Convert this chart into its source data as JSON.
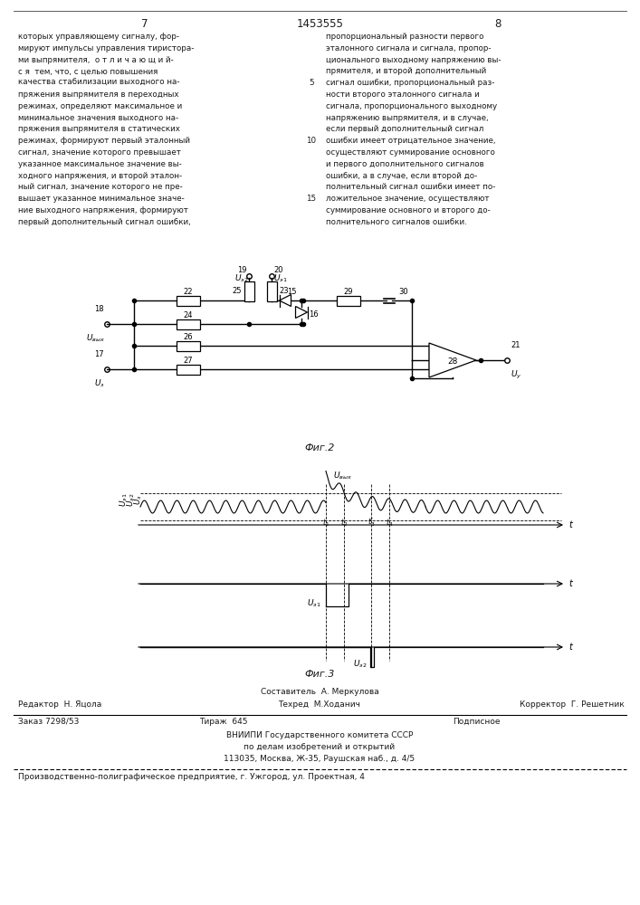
{
  "page_number_left": "7",
  "patent_number": "1453555",
  "page_number_right": "8",
  "left_column_text": [
    "которых управляющему сигналу, фор-",
    "мируют импульсы управления тиристора-",
    "ми выпрямителя,  о т л и ч а ю щ и й-",
    "с я  тем, что, с целью повышения",
    "качества стабилизации выходного на-",
    "пряжения выпрямителя в переходных",
    "режимах, определяют максимальное и",
    "минимальное значения выходного на-",
    "пряжения выпрямителя в статических",
    "режимах, формируют первый эталонный",
    "сигнал, значение которого превышает",
    "указанное максимальное значение вы-",
    "ходного напряжения, и второй эталон-",
    "ный сигнал, значение которого не пре-",
    "вышает указанное минимальное значе-",
    "ние выходного напряжения, формируют",
    "первый дополнительный сигнал ошибки,"
  ],
  "right_column_text": [
    "пропорциональный разности первого",
    "эталонного сигнала и сигнала, пропор-",
    "ционального выходному напряжению вы-",
    "прямителя, и второй дополнительный",
    "сигнал ошибки, пропорциональный раз-",
    "ности второго эталонного сигнала и",
    "сигнала, пропорционального выходному",
    "напряжению выпрямителя, и в случае,",
    "если первый дополнительный сигнал",
    "ошибки имеет отрицательное значение,",
    "осуществляют суммирование основного",
    "и первого дополнительного сигналов",
    "ошибки, а в случае, если второй до-",
    "полнительный сигнал ошибки имеет по-",
    "ложительное значение, осуществляют",
    "суммирование основного и второго до-",
    "полнительного сигналов ошибки."
  ],
  "fig2_caption": "Фиг.2",
  "fig3_caption": "Фиг.3",
  "footer_composer_line1": "Составитель  А. Меркулова",
  "footer_editor": "Редактор  Н. Яцола",
  "footer_tech": "Техред  М.Ходанич",
  "footer_corrector": "Корректор  Г. Решетник",
  "footer_order": "Заказ 7298/53",
  "footer_copies": "Тираж  645",
  "footer_signed": "Подписное",
  "footer_org1": "ВНИИПИ Государственного комитета СССР",
  "footer_org2": "по делам изобретений и открытий",
  "footer_org3": "113035, Москва, Ж-35, Раушская наб., д. 4/5",
  "footer_prod": "Производственно-полиграфическое предприятие, г. Ужгород, ул. Проектная, 4",
  "bg_color": "#ffffff",
  "text_color": "#1a1a1a"
}
